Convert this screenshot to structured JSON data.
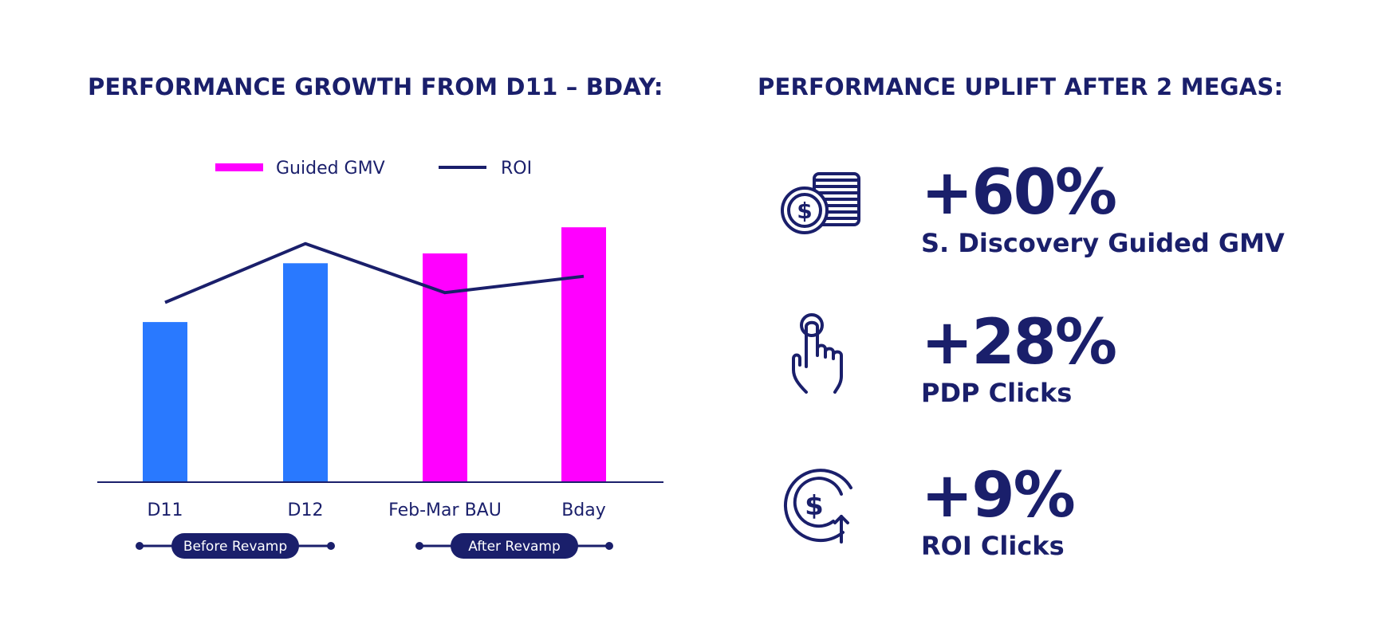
{
  "left_heading": "PERFORMANCE GROWTH FROM D11 – BDAY:",
  "right_heading": "PERFORMANCE UPLIFT AFTER 2 MEGAS:",
  "chart_data": {
    "type": "bar",
    "categories": [
      "D11",
      "D12",
      "Feb-Mar BAU",
      "Bday"
    ],
    "series": [
      {
        "name": "Guided GMV",
        "type": "bar",
        "values": [
          49,
          67,
          70,
          78
        ],
        "colors": [
          "#2979ff",
          "#2979ff",
          "#ff00ff",
          "#ff00ff"
        ]
      },
      {
        "name": "ROI",
        "type": "line",
        "values": [
          55,
          73,
          58,
          63
        ],
        "color": "#1a1f6b"
      }
    ],
    "ylim": [
      0,
      100
    ],
    "grid": false,
    "legend": "top",
    "groups": [
      {
        "label": "Before Revamp",
        "categories": [
          "D11",
          "D12"
        ]
      },
      {
        "label": "After Revamp",
        "categories": [
          "Feb-Mar BAU",
          "Bday"
        ]
      }
    ]
  },
  "stats": [
    {
      "value": "+60%",
      "label": "S. Discovery Guided GMV",
      "icon": "coin-stack-dollar-icon"
    },
    {
      "value": "+28%",
      "label": "PDP Clicks",
      "icon": "hand-pointer-icon"
    },
    {
      "value": "+9%",
      "label": "ROI Clicks",
      "icon": "dollar-circle-arrow-up-icon"
    }
  ],
  "colors": {
    "navy": "#1a1f6b",
    "blue": "#2979ff",
    "magenta": "#ff00ff"
  }
}
